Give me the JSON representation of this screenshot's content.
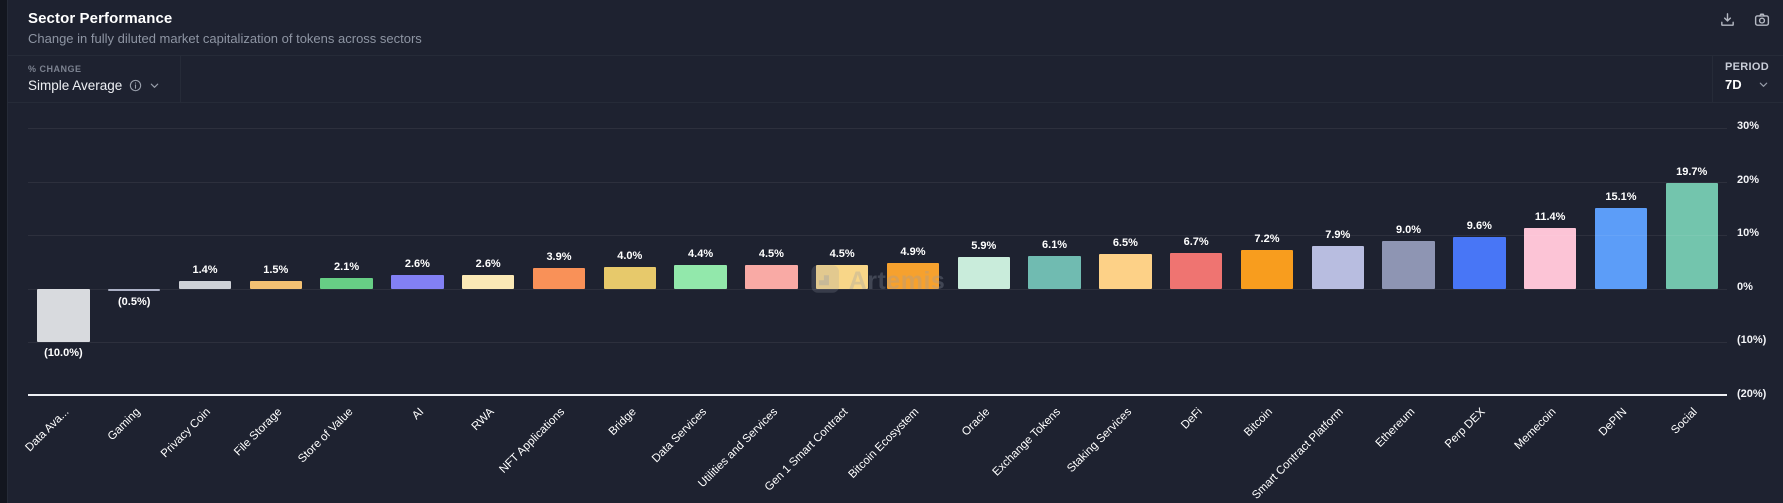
{
  "header": {
    "action_icons": [
      "download-icon",
      "camera-icon"
    ]
  },
  "controls": {
    "metric_label": "% CHANGE",
    "metric_value": "Simple Average",
    "metric_icons": [
      "info-icon",
      "chevron-down-icon"
    ],
    "period_label": "PERIOD",
    "period_value": "7D",
    "period_icon": "chevron-down-icon"
  },
  "watermark": {
    "text": "Artemis",
    "logo": "artemis-logo"
  },
  "colors": {
    "card_background": "#1e2230",
    "page_background": "#13161f",
    "axis_line": "#eef0f4",
    "grid_line": "#2a2e3b",
    "text_primary": "#ffffff",
    "text_muted": "#8e95a3"
  },
  "chart_data": {
    "type": "bar",
    "title": "Sector Performance",
    "subtitle": "Change in fully diluted market capitalization of tokens across sectors",
    "categories": [
      "Data Ava...",
      "Gaming",
      "Privacy Coin",
      "File Storage",
      "Store of Value",
      "AI",
      "RWA",
      "NFT Applications",
      "Bridge",
      "Data Services",
      "Utilities and Services",
      "Gen 1 Smart Contract",
      "Bitcoin Ecosystem",
      "Oracle",
      "Exchange Tokens",
      "Staking Services",
      "DeFi",
      "Bitcoin",
      "Smart Contract Platform",
      "Ethereum",
      "Perp DEX",
      "Memecoin",
      "DePIN",
      "Social"
    ],
    "values": [
      -10.0,
      -0.5,
      1.4,
      1.5,
      2.1,
      2.6,
      2.6,
      3.9,
      4.0,
      4.4,
      4.5,
      4.5,
      4.9,
      5.9,
      6.1,
      6.5,
      6.7,
      7.2,
      7.9,
      9.0,
      9.6,
      11.4,
      15.1,
      19.7
    ],
    "value_labels": [
      "(10.0%)",
      "(0.5%)",
      "1.4%",
      "1.5%",
      "2.1%",
      "2.6%",
      "2.6%",
      "3.9%",
      "4.0%",
      "4.4%",
      "4.5%",
      "4.5%",
      "4.9%",
      "5.9%",
      "6.1%",
      "6.5%",
      "6.7%",
      "7.2%",
      "7.9%",
      "9.0%",
      "9.6%",
      "11.4%",
      "15.1%",
      "19.7%"
    ],
    "bar_colors": [
      "#d8dade",
      "#a9aec3",
      "#ced1d7",
      "#f4c173",
      "#67ce85",
      "#8280f4",
      "#fbe9b6",
      "#f99158",
      "#e7c96b",
      "#92e8ab",
      "#f9aaa5",
      "#f8d688",
      "#f6a12e",
      "#c9ecdb",
      "#70bbb1",
      "#fdd187",
      "#ef7471",
      "#f89d1e",
      "#b8bde0",
      "#8e95b3",
      "#4876f6",
      "#fcc4d6",
      "#5c9df8",
      "#73c5ad"
    ],
    "xlabel": "",
    "ylabel": "",
    "ylim": [
      -20,
      30
    ],
    "y_ticks": {
      "values": [
        30,
        20,
        10,
        0,
        -10,
        -20
      ],
      "labels": [
        "30%",
        "20%",
        "10%",
        "0%",
        "(10%)",
        "(20%)"
      ]
    },
    "grid": "horizontal",
    "legend": "none"
  }
}
